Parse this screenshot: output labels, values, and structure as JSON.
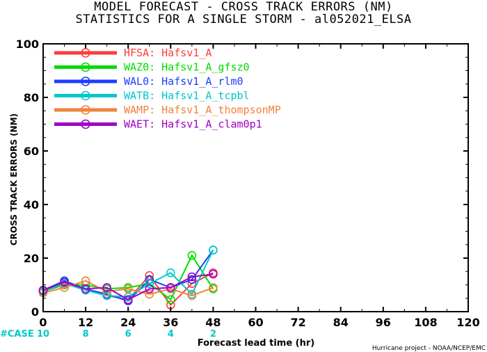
{
  "title": {
    "line1": "MODEL FORECAST - CROSS TRACK ERRORS (NM)",
    "line2": "STATISTICS FOR A SINGLE STORM - al052021_ELSA"
  },
  "footer": {
    "credit": "Hurricane project - NOAA/NCEP/EMC",
    "case_label": "#CASE",
    "case_color": "#00c8c8"
  },
  "chart_data": {
    "type": "line",
    "xlabel": "Forecast lead time (hr)",
    "ylabel": "CROSS TRACK ERRORS (NM)",
    "xlim": [
      0,
      120
    ],
    "ylim": [
      0,
      100
    ],
    "xticks": [
      0,
      12,
      24,
      36,
      48,
      60,
      72,
      84,
      96,
      108,
      120
    ],
    "yticks": [
      0,
      20,
      40,
      60,
      80,
      100
    ],
    "grid": false,
    "legend_position": "top-left",
    "x": [
      0,
      6,
      12,
      18,
      24,
      30,
      36,
      42,
      48
    ],
    "cases": [
      {
        "x": 0,
        "label": "10"
      },
      {
        "x": 12,
        "label": "8"
      },
      {
        "x": 24,
        "label": "6"
      },
      {
        "x": 36,
        "label": "4"
      },
      {
        "x": 48,
        "label": "2"
      }
    ],
    "series": [
      {
        "code": "HFSA:",
        "name": "Hafsv1_A",
        "color": "#ff3c3c",
        "values": [
          7.5,
          11,
          8.5,
          6,
          4.5,
          13.5,
          2.5,
          10.5,
          14.5
        ]
      },
      {
        "code": "WAZ0:",
        "name": "Hafsv1_A_gfsz0",
        "color": "#00dc00",
        "values": [
          7.5,
          10,
          10,
          8.5,
          9,
          10.5,
          4.5,
          21,
          8.5
        ]
      },
      {
        "code": "WAL0:",
        "name": "Hafsv1_A_rlm0",
        "color": "#1e3cff",
        "values": [
          8,
          11.5,
          8.5,
          6.5,
          4,
          12,
          9,
          12,
          23
        ]
      },
      {
        "code": "WATB:",
        "name": "Hafsv1_A_tcpbl",
        "color": "#00c8c8",
        "values": [
          7.5,
          10.5,
          8,
          6,
          5.5,
          10.5,
          14.5,
          6.5,
          23
        ]
      },
      {
        "code": "WAMP:",
        "name": "Hafsv1_A_thompsonMP",
        "color": "#f0823c",
        "values": [
          7,
          9,
          11.5,
          7.5,
          8.5,
          6.5,
          8.5,
          6,
          9
        ]
      },
      {
        "code": "WAET:",
        "name": "Hafsv1_A_clam0p1",
        "color": "#a000c8",
        "values": [
          8,
          11,
          8.5,
          9,
          4.5,
          8.5,
          9,
          13,
          14
        ]
      }
    ]
  }
}
